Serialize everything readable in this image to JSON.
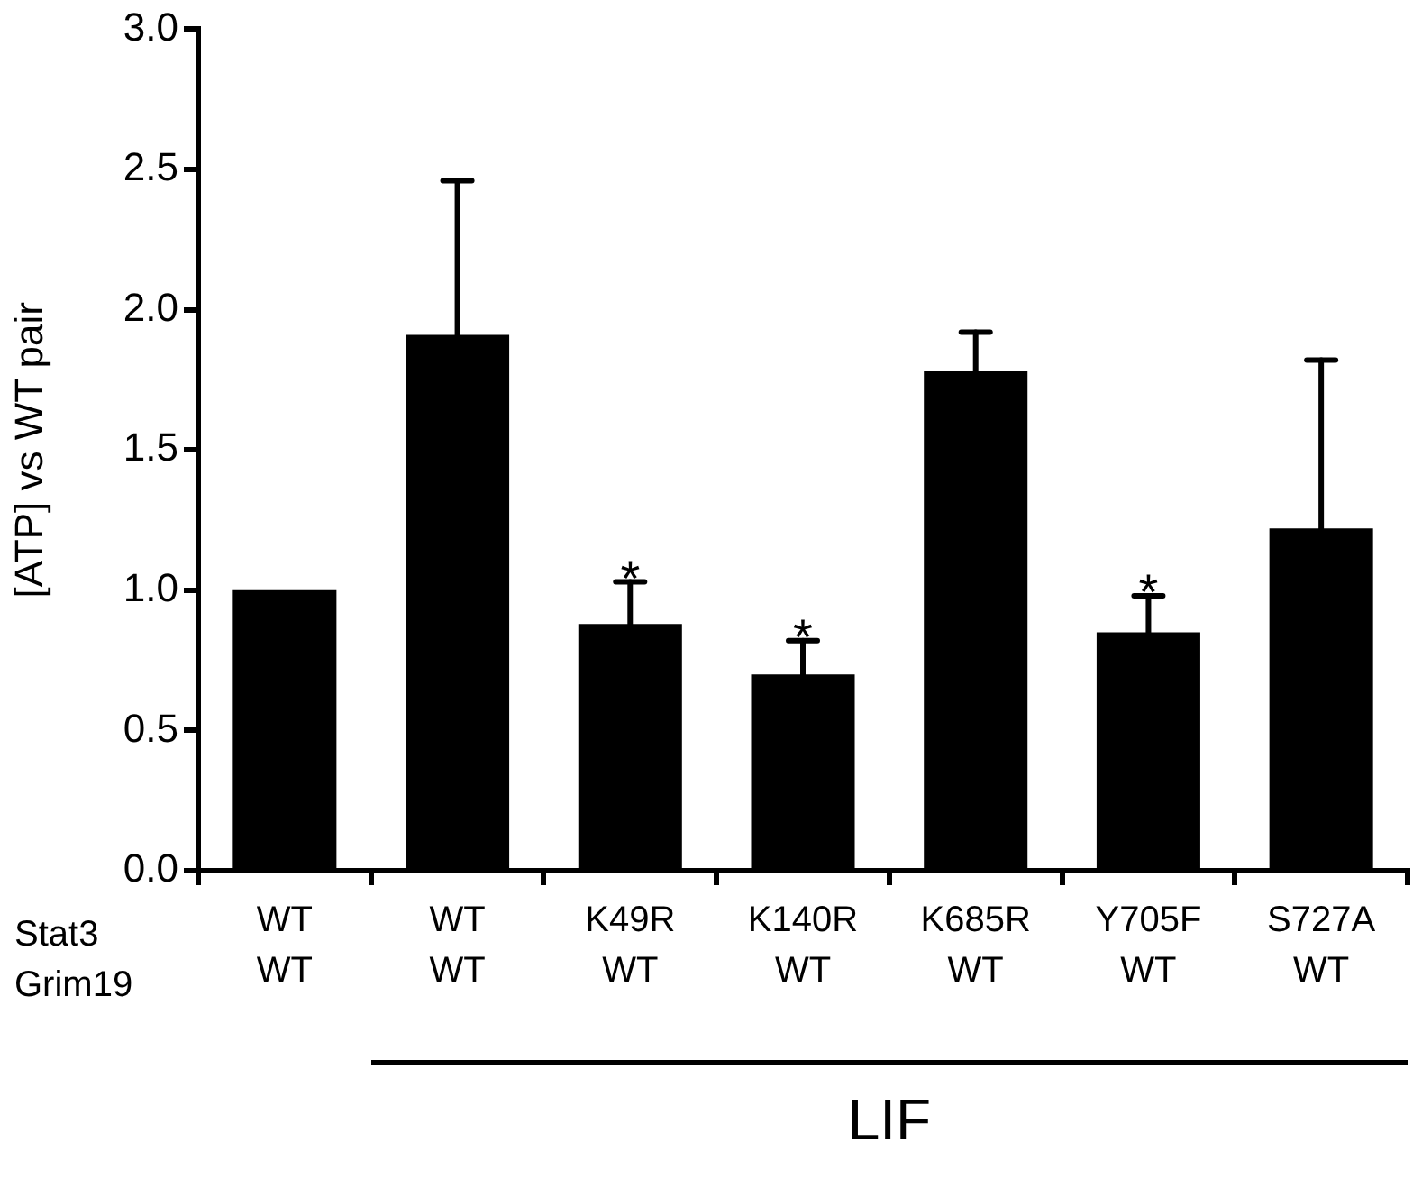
{
  "chart_data": {
    "type": "bar",
    "ylabel": "[ATP] vs WT pair",
    "categories": [
      "WT\nWT",
      "WT\nWT",
      "K49R\nWT",
      "K140R\nWT",
      "K685R\nWT",
      "Y705F\nWT",
      "S727A\nWT"
    ],
    "values": [
      1.0,
      1.91,
      0.88,
      0.7,
      1.78,
      0.85,
      1.22
    ],
    "errors": [
      null,
      0.55,
      0.15,
      0.12,
      0.14,
      0.13,
      0.6
    ],
    "color": "#000000",
    "ylim": [
      0,
      3
    ],
    "yticks": [
      {
        "value": 0,
        "label": "0.0"
      },
      {
        "value": 0.5,
        "label": "0.5"
      },
      {
        "value": 1,
        "label": "1.0"
      },
      {
        "value": 1.5,
        "label": "1.5"
      },
      {
        "value": 2,
        "label": "2.0"
      },
      {
        "value": 2.5,
        "label": "2.5"
      },
      {
        "value": 3,
        "label": "3.0"
      }
    ],
    "annotations": [
      "Stat3",
      "Grim19",
      "LIF",
      {
        "text": "*",
        "x": "K49R\nWT",
        "y": 1.03
      },
      {
        "text": "*",
        "x": "K140R\nWT",
        "y": 0.82
      },
      {
        "text": "*",
        "x": "Y705F\nWT",
        "y": 0.98
      }
    ],
    "grid": false,
    "legend": false
  }
}
